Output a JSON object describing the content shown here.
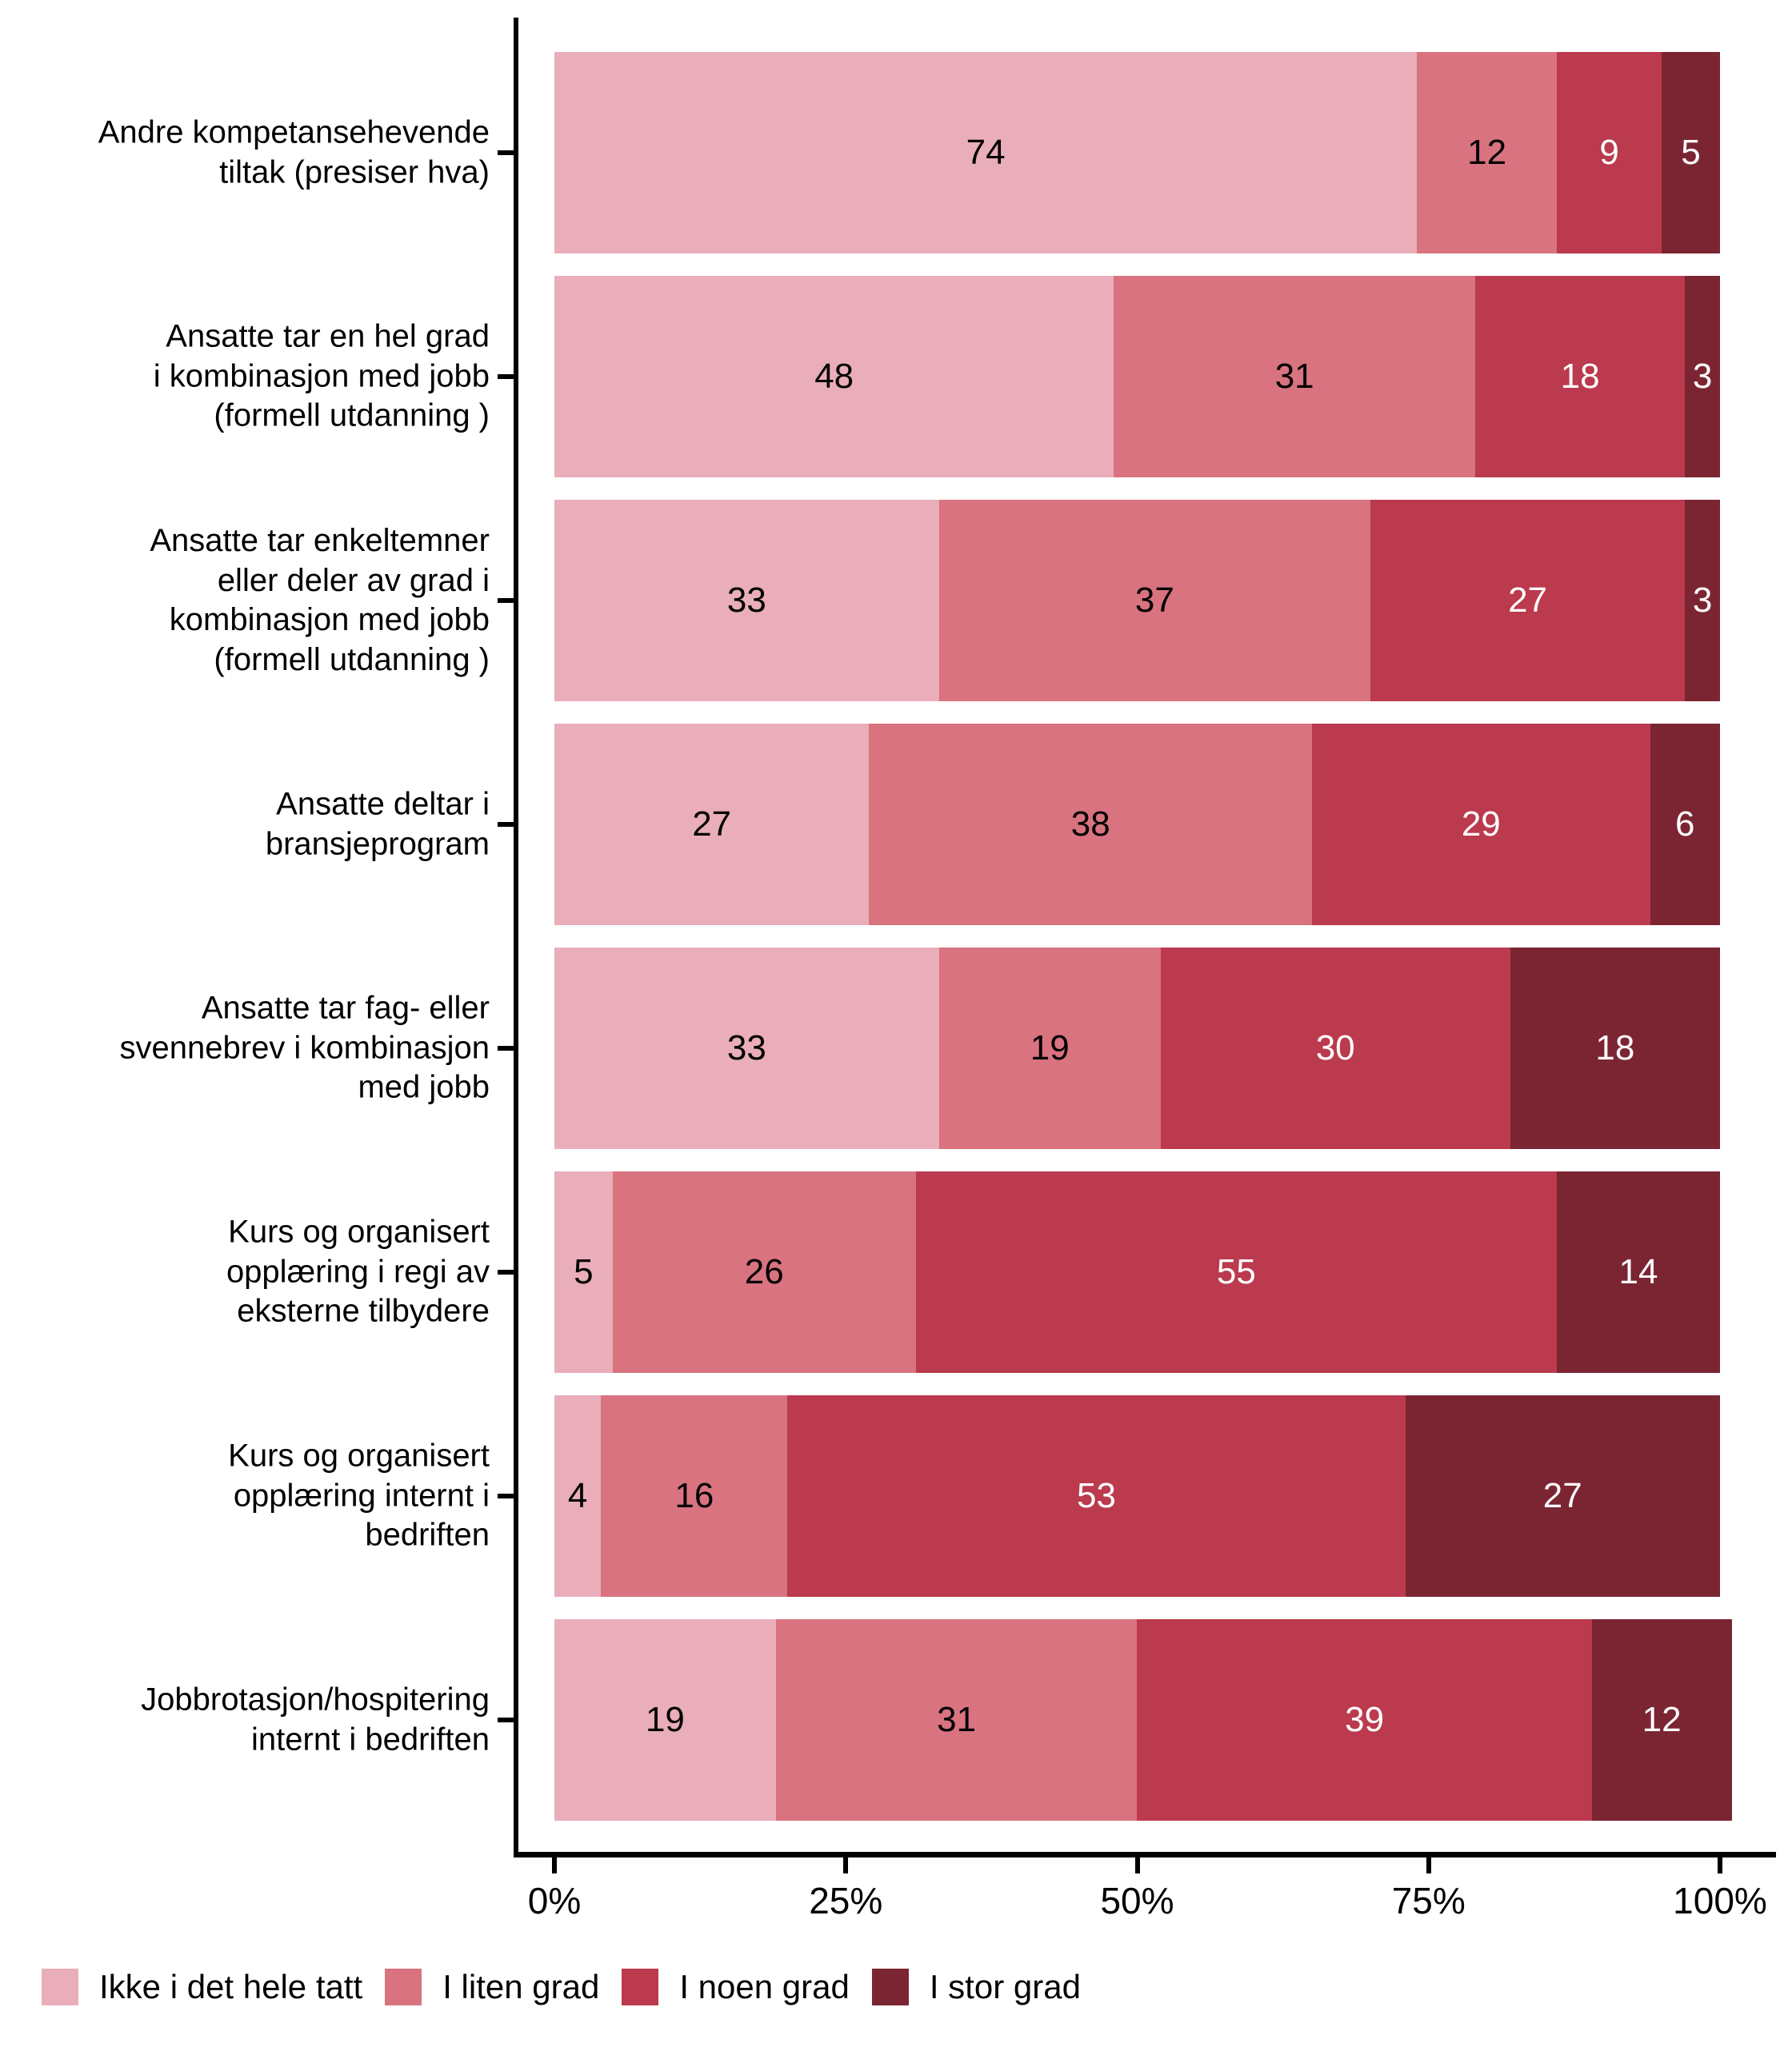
{
  "chart_data": {
    "type": "bar",
    "orientation": "horizontal",
    "stacked": true,
    "unit": "percent",
    "title": "",
    "xlabel": "",
    "ylabel": "",
    "x_axis": {
      "range": [
        0,
        100
      ],
      "tick_values": [
        0,
        25,
        50,
        75,
        100
      ],
      "tick_labels": [
        "0%",
        "25%",
        "50%",
        "75%",
        "100%"
      ]
    },
    "grid": "off",
    "categories": [
      "Andre kompetansehevende\ntiltak (presiser hva)",
      "Ansatte tar en hel grad\ni kombinasjon med jobb\n(formell utdanning )",
      "Ansatte tar enkeltemner\neller deler av grad i\nkombinasjon med jobb\n(formell utdanning )",
      "Ansatte deltar i\nbransjeprogram",
      "Ansatte tar fag- eller\nsvennebrev i kombinasjon\nmed jobb",
      "Kurs og organisert\nopplæring i regi av\neksterne tilbydere",
      "Kurs og organisert\nopplæring internt i\nbedriften",
      "Jobbrotasjon/hospitering\ninternt i bedriften"
    ],
    "series": [
      {
        "name": "Ikke i det hele tatt",
        "color": "#E9AEB9",
        "label_color": "#000000",
        "values": [
          74,
          48,
          33,
          27,
          33,
          5,
          4,
          19
        ]
      },
      {
        "name": "I liten grad",
        "color": "#D8737F",
        "label_color": "#000000",
        "values": [
          12,
          31,
          37,
          38,
          19,
          26,
          16,
          31
        ]
      },
      {
        "name": "I noen grad",
        "color": "#BB3A4E",
        "label_color": "#FFFFFF",
        "values": [
          9,
          18,
          27,
          29,
          30,
          55,
          53,
          39
        ]
      },
      {
        "name": "I stor grad",
        "color": "#7B2533",
        "label_color": "#FFFFFF",
        "values": [
          5,
          3,
          3,
          6,
          18,
          14,
          27,
          12
        ]
      }
    ],
    "legend": {
      "position": "bottom-left",
      "entries": [
        "Ikke i det hele tatt",
        "I liten grad",
        "I noen grad",
        "I stor grad"
      ]
    },
    "axis_color": "#000000"
  }
}
